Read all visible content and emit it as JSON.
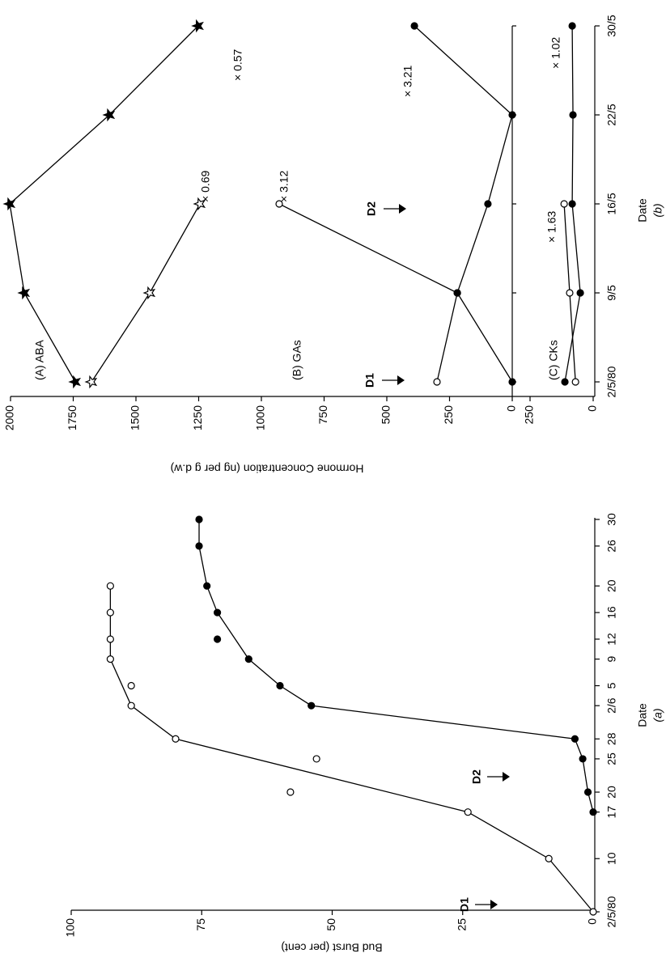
{
  "chart_data": [
    {
      "type": "line",
      "xlabel": "Date",
      "ylabel": "Bud Burst (per cent)",
      "caption": "(a)",
      "xlim": [
        0,
        59
      ],
      "xticks": [
        {
          "value": 0,
          "label": "2/5/80"
        },
        {
          "value": 8,
          "label": "10"
        },
        {
          "value": 15,
          "label": "17"
        },
        {
          "value": 18,
          "label": "20"
        },
        {
          "value": 23,
          "label": "25"
        },
        {
          "value": 26,
          "label": "28"
        },
        {
          "value": 31,
          "label": "2/6"
        },
        {
          "value": 34,
          "label": "5"
        },
        {
          "value": 38,
          "label": "9"
        },
        {
          "value": 41,
          "label": "12"
        },
        {
          "value": 45,
          "label": "16"
        },
        {
          "value": 49,
          "label": "20"
        },
        {
          "value": 55,
          "label": "26"
        },
        {
          "value": 59,
          "label": "30"
        }
      ],
      "ylim": [
        0,
        100
      ],
      "yticks": [
        0,
        25,
        50,
        75,
        100
      ],
      "series": [
        {
          "color": "#000000",
          "marker": "circle",
          "fill": "open",
          "line": true,
          "x": [
            0,
            8,
            15,
            26,
            31,
            38,
            41,
            45,
            49
          ],
          "values": [
            0,
            8.5,
            24,
            80,
            88.5,
            92.5,
            92.5,
            92.5,
            92.5
          ]
        },
        {
          "color": "#000000",
          "marker": "circle",
          "fill": "filled",
          "line": true,
          "x": [
            15,
            18,
            23,
            26,
            31,
            34,
            38,
            45,
            49,
            55,
            59
          ],
          "values": [
            0,
            1,
            2,
            3.5,
            54,
            60,
            66,
            72,
            74,
            75.5,
            75.5
          ]
        },
        {
          "color": "#000000",
          "marker": "circle",
          "fill": "open",
          "line": false,
          "x": [
            18,
            23,
            34
          ],
          "values": [
            58,
            53,
            88.5
          ]
        },
        {
          "color": "#000000",
          "marker": "circle",
          "fill": "filled",
          "line": false,
          "x": [
            41
          ],
          "values": [
            72
          ]
        }
      ],
      "annotations": [
        "D1",
        "D2"
      ]
    },
    {
      "type": "line",
      "xlabel": "Date",
      "ylabel": "Hormone Concentration (ng per g d.w)",
      "caption": "(b)",
      "categories": [
        "2/5/80",
        "9/5",
        "16/5",
        "22/5",
        "30/5"
      ],
      "ylim": [
        0,
        2000
      ],
      "yticks": [
        0,
        250,
        500,
        750,
        1000,
        1250,
        1500,
        1750,
        2000
      ],
      "y2lim": [
        0,
        250
      ],
      "y2ticks": [
        0,
        250
      ],
      "series": [
        {
          "color": "#000000",
          "marker": "star",
          "fill": "filled",
          "values": [
            1742,
            1945,
            2003,
            1606,
            1252
          ]
        },
        {
          "color": "#000000",
          "marker": "star",
          "fill": "open",
          "values": [
            1677,
            1445,
            1245,
            null,
            null
          ]
        },
        {
          "color": "#000000",
          "marker": "circle",
          "fill": "open",
          "values": [
            300,
            219,
            929,
            null,
            null
          ]
        },
        {
          "color": "#000000",
          "marker": "circle",
          "fill": "filled",
          "values": [
            0,
            219,
            97,
            0,
            390
          ]
        },
        {
          "color": "#000000",
          "marker": "circle",
          "fill": "filled",
          "axis": "y2",
          "values": [
            112,
            51,
            83,
            80,
            83
          ]
        },
        {
          "color": "#000000",
          "marker": "circle",
          "fill": "open",
          "axis": "y2",
          "values": [
            70,
            93,
            115,
            null,
            null
          ]
        }
      ],
      "annotations": [
        "(A) ABA",
        "(B) GAs",
        "(C) CKs",
        "× 0.57",
        "× 0.69",
        "× 3.12",
        "× 3.21",
        "× 1.63",
        "× 1.02",
        "D1",
        "D2"
      ]
    }
  ]
}
